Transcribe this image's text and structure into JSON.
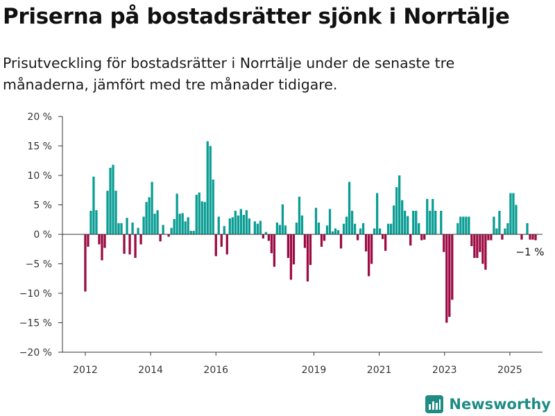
{
  "title": "Priserna på bostadsrätter sjönk i Norrtälje",
  "subtitle": "Prisutveckling för bostadsrätter i Norrtälje under de senaste tre månaderna, jämfört med tre månader tidigare.",
  "brand": "Newsworthy",
  "colors": {
    "positive": "#0a9d94",
    "negative": "#9c0b43",
    "axis": "#333333",
    "brand": "#1e8c84"
  },
  "chart_data": {
    "type": "bar",
    "y_tick_labels": [
      "20 %",
      "15 %",
      "10 %",
      "5 %",
      "0 %",
      "−5 %",
      "−10 %",
      "−15 %",
      "−20 %"
    ],
    "y_ticks": [
      20,
      15,
      10,
      5,
      0,
      -5,
      -10,
      -15,
      -20
    ],
    "ylim": [
      -20,
      20
    ],
    "x_tick_labels": [
      "2012",
      "2014",
      "2016",
      "2019",
      "2021",
      "2023",
      "2025"
    ],
    "x_tick_years": [
      2012,
      2014,
      2016,
      2019,
      2021,
      2023,
      2025
    ],
    "xlim": [
      2011.3,
      2026.0
    ],
    "grid": false,
    "annotation": {
      "text": "−1 %",
      "value": -1
    },
    "values": [
      -9.7,
      -2.1,
      4.0,
      9.8,
      4.1,
      -1.7,
      -4.4,
      -2.3,
      7.4,
      11.3,
      11.8,
      7.4,
      1.9,
      1.9,
      -3.3,
      2.8,
      -3.4,
      2.0,
      -4.0,
      1.1,
      -1.7,
      3.0,
      5.5,
      6.3,
      8.9,
      3.5,
      4.1,
      -1.2,
      1.6,
      0.0,
      -0.4,
      1.1,
      2.6,
      6.9,
      3.5,
      3.6,
      2.2,
      2.9,
      0.6,
      0.6,
      6.7,
      7.1,
      5.6,
      5.5,
      15.8,
      15.0,
      9.3,
      -3.7,
      3.0,
      -2.1,
      1.4,
      -3.4,
      2.7,
      2.9,
      4.0,
      3.2,
      4.3,
      3.3,
      4.1,
      2.7,
      0.0,
      2.2,
      1.8,
      2.3,
      -0.7,
      0.4,
      -1.1,
      -3.2,
      -5.5,
      2.0,
      1.6,
      5.1,
      1.5,
      -4.0,
      -7.7,
      -5.1,
      2.0,
      6.4,
      3.2,
      -2.3,
      -8.0,
      -5.2,
      0.0,
      4.5,
      2.0,
      -2.1,
      -1.1,
      1.5,
      4.3,
      0.5,
      1.0,
      0.7,
      -2.4,
      1.8,
      3.0,
      8.9,
      4.0,
      1.8,
      -1.0,
      1.0,
      1.9,
      -2.9,
      -7.1,
      -5.0,
      1.0,
      7.0,
      1.0,
      -0.8,
      -2.8,
      1.8,
      1.8,
      4.9,
      8.0,
      10.0,
      5.8,
      4.0,
      3.1,
      -1.9,
      4.0,
      4.0,
      1.9,
      -1.0,
      -0.9,
      6.0,
      4.0,
      6.0,
      4.0,
      0.0,
      4.0,
      -3.0,
      -15.0,
      -14.0,
      -11.1,
      0.0,
      1.9,
      3.0,
      3.0,
      3.0,
      3.0,
      -2.0,
      -4.0,
      -4.0,
      -3.0,
      -5.0,
      -6.0,
      -1.0,
      -1.0,
      3.0,
      1.0,
      4.0,
      -0.9,
      1.0,
      1.9,
      7.0,
      7.0,
      5.0,
      0.0,
      -0.9,
      0.0,
      1.9,
      -0.9,
      -0.9,
      -1.0
    ]
  }
}
